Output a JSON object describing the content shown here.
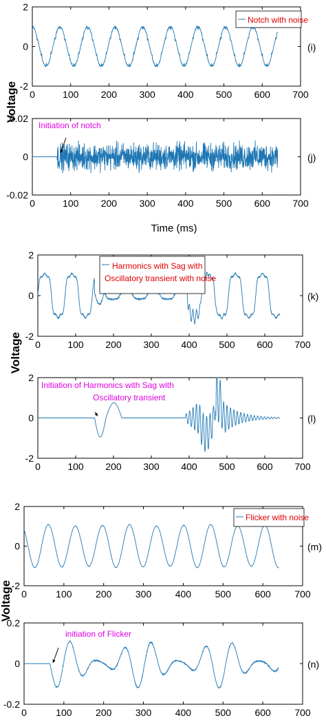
{
  "colors": {
    "line": "#1f77b4",
    "legend_text": "#e00000",
    "annotation_text": "#e000e0",
    "axis": "#000000"
  },
  "ylabels": [
    "Voltage",
    "Voltage",
    "Voltage"
  ],
  "xlabel_top": "Time (ms)",
  "chart_data": [
    {
      "id": "i",
      "type": "line",
      "panel_label": "(i)",
      "legend": "Notch with noise",
      "xlim": [
        0,
        700
      ],
      "ylim": [
        -2,
        2
      ],
      "xticks": [
        0,
        100,
        200,
        300,
        400,
        500,
        600,
        700
      ],
      "yticks": [
        -2,
        0,
        2
      ],
      "series": [
        {
          "name": "Notch with noise",
          "signal": {
            "kind": "notch",
            "amp": 1,
            "period_ms": 72,
            "x_end": 640,
            "noise": 0.05
          }
        }
      ]
    },
    {
      "id": "j",
      "type": "line",
      "panel_label": "(j)",
      "xlim": [
        0,
        700
      ],
      "ylim": [
        -0.02,
        0.02
      ],
      "xticks": [
        0,
        100,
        200,
        300,
        400,
        500,
        600,
        700
      ],
      "yticks": [
        -0.02,
        0,
        0.02
      ],
      "annotation": {
        "text": "Initiation of notch",
        "x": 65,
        "y": 0
      },
      "series": [
        {
          "signal": {
            "kind": "noise",
            "start": 65,
            "amp": 0.0065,
            "x_end": 640
          }
        }
      ]
    },
    {
      "id": "k",
      "type": "line",
      "panel_label": "(k)",
      "legend": "Harmonics with Sag with Oscillatory transient  with noise",
      "xlim": [
        0,
        700
      ],
      "ylim": [
        -2,
        2
      ],
      "xticks": [
        0,
        100,
        200,
        300,
        400,
        500,
        600,
        700
      ],
      "yticks": [
        -2,
        0,
        2
      ],
      "series": [
        {
          "name": "Harmonics with Sag with Oscillatory transient  with noise",
          "signal": {
            "kind": "harm_sag",
            "amp": 1.2,
            "period_ms": 72,
            "sag_start": 150,
            "sag_end": 390,
            "sag_amp": 0.2,
            "x_end": 640,
            "noise": 0.05
          }
        }
      ]
    },
    {
      "id": "l",
      "type": "line",
      "panel_label": "(l)",
      "xlim": [
        0,
        700
      ],
      "ylim": [
        -2,
        2
      ],
      "xticks": [
        0,
        100,
        200,
        300,
        400,
        500,
        600,
        700
      ],
      "yticks": [
        -2,
        0,
        2
      ],
      "annotation": {
        "text": "Initiation of Harmonics with Sag with\nOscillatory transient",
        "x": 150,
        "y": 0
      },
      "series": [
        {
          "signal": {
            "kind": "transient",
            "x_end": 640
          }
        }
      ]
    },
    {
      "id": "m",
      "type": "line",
      "panel_label": "(m)",
      "legend": "Flicker with noise",
      "xlim": [
        0,
        700
      ],
      "ylim": [
        -2,
        2
      ],
      "xticks": [
        0,
        100,
        200,
        300,
        400,
        500,
        600,
        700
      ],
      "yticks": [
        -2,
        0,
        2
      ],
      "series": [
        {
          "name": "Flicker with noise",
          "signal": {
            "kind": "flicker",
            "amp": 1.05,
            "period_ms": 68,
            "x_end": 640
          }
        }
      ]
    },
    {
      "id": "n",
      "type": "line",
      "panel_label": "(n)",
      "xlim": [
        0,
        700
      ],
      "ylim": [
        -0.2,
        0.2
      ],
      "xticks": [
        0,
        100,
        200,
        300,
        400,
        500,
        600,
        700
      ],
      "yticks": [
        -0.2,
        0,
        0.2
      ],
      "annotation": {
        "text": "initiation of Flicker",
        "x": 65,
        "y": 0
      },
      "series": [
        {
          "signal": {
            "kind": "flicker_diff",
            "start": 65,
            "amp": 0.12,
            "period_ms": 68,
            "x_end": 640
          }
        }
      ]
    }
  ]
}
